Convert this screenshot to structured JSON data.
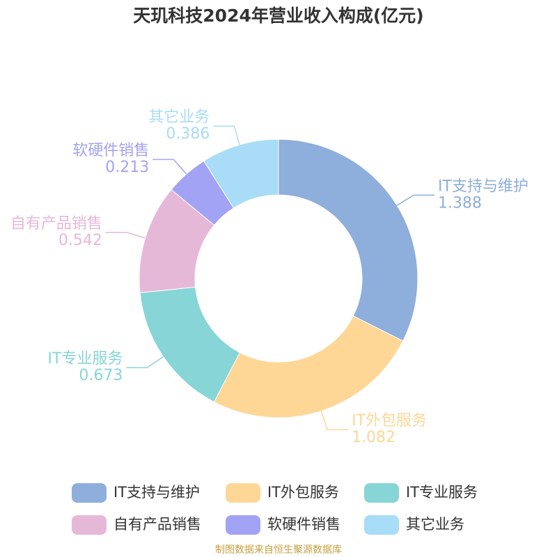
{
  "chart_data": {
    "type": "donut",
    "title": "天玑科技2024年营业收入构成(亿元)",
    "categories": [
      "IT支持与维护",
      "IT外包服务",
      "IT专业服务",
      "自有产品销售",
      "软硬件销售",
      "其它业务"
    ],
    "values": [
      1.388,
      1.082,
      0.673,
      0.542,
      0.213,
      0.386
    ],
    "colors": [
      "#8eaedb",
      "#fed797",
      "#87d5d6",
      "#e6b8d8",
      "#a3a3f5",
      "#a8dcf7"
    ],
    "legend": "bottom",
    "source": "制图数据来自恒生聚源数据库"
  }
}
